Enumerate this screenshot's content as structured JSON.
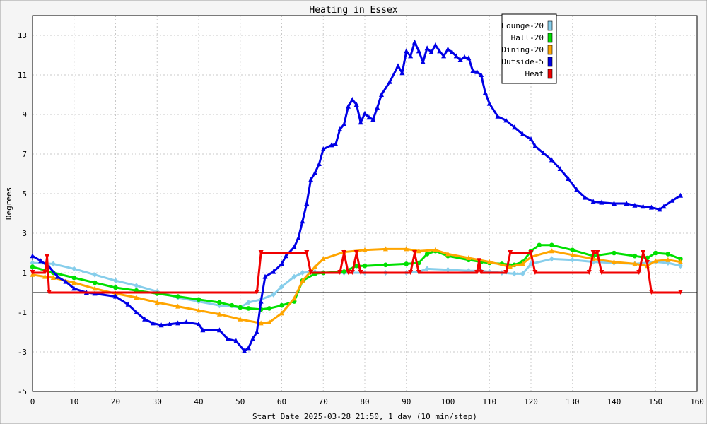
{
  "chart_data": {
    "type": "line",
    "title": "Heating in Essex",
    "xlabel": "Start Date 2025-03-28 21:50, 1 day (10 min/step)",
    "ylabel": "Degrees",
    "xlim": [
      0,
      160
    ],
    "ylim": [
      -5,
      14
    ],
    "xticks": [
      0,
      10,
      20,
      30,
      40,
      50,
      60,
      70,
      80,
      90,
      100,
      110,
      120,
      130,
      140,
      150,
      160
    ],
    "yticks": [
      -5,
      -3,
      -1,
      1,
      3,
      5,
      7,
      9,
      11,
      13
    ],
    "grid": true,
    "legend_position": "top-right",
    "baseline": 0,
    "series": [
      {
        "name": "Lounge-20",
        "color": "#87ceeb",
        "marker": "diamond",
        "points": [
          [
            0,
            1.5
          ],
          [
            5,
            1.45
          ],
          [
            10,
            1.2
          ],
          [
            15,
            0.9
          ],
          [
            20,
            0.6
          ],
          [
            25,
            0.35
          ],
          [
            30,
            0.05
          ],
          [
            35,
            -0.25
          ],
          [
            40,
            -0.45
          ],
          [
            45,
            -0.65
          ],
          [
            50,
            -0.75
          ],
          [
            52,
            -0.5
          ],
          [
            55,
            -0.35
          ],
          [
            58,
            -0.1
          ],
          [
            60,
            0.3
          ],
          [
            63,
            0.8
          ],
          [
            65,
            1.0
          ],
          [
            68,
            1.05
          ],
          [
            70,
            1.0
          ],
          [
            75,
            1.0
          ],
          [
            80,
            1.0
          ],
          [
            85,
            1.0
          ],
          [
            90,
            1.0
          ],
          [
            93,
            1.05
          ],
          [
            95,
            1.2
          ],
          [
            100,
            1.15
          ],
          [
            105,
            1.1
          ],
          [
            108,
            1.1
          ],
          [
            110,
            1.05
          ],
          [
            113,
            1.0
          ],
          [
            116,
            0.95
          ],
          [
            118,
            0.95
          ],
          [
            120,
            1.45
          ],
          [
            125,
            1.7
          ],
          [
            130,
            1.65
          ],
          [
            135,
            1.55
          ],
          [
            140,
            1.5
          ],
          [
            145,
            1.45
          ],
          [
            150,
            1.55
          ],
          [
            153,
            1.5
          ],
          [
            156,
            1.35
          ]
        ]
      },
      {
        "name": "Hall-20",
        "color": "#00e000",
        "marker": "circle",
        "points": [
          [
            0,
            1.3
          ],
          [
            5,
            1.0
          ],
          [
            10,
            0.75
          ],
          [
            15,
            0.5
          ],
          [
            20,
            0.25
          ],
          [
            25,
            0.1
          ],
          [
            30,
            -0.05
          ],
          [
            35,
            -0.2
          ],
          [
            40,
            -0.35
          ],
          [
            45,
            -0.5
          ],
          [
            48,
            -0.65
          ],
          [
            50,
            -0.75
          ],
          [
            52,
            -0.8
          ],
          [
            55,
            -0.85
          ],
          [
            57,
            -0.8
          ],
          [
            60,
            -0.65
          ],
          [
            63,
            -0.45
          ],
          [
            65,
            0.6
          ],
          [
            68,
            0.95
          ],
          [
            70,
            1.0
          ],
          [
            75,
            1.05
          ],
          [
            78,
            1.35
          ],
          [
            80,
            1.35
          ],
          [
            85,
            1.4
          ],
          [
            90,
            1.45
          ],
          [
            93,
            1.5
          ],
          [
            95,
            1.95
          ],
          [
            97,
            2.1
          ],
          [
            100,
            1.85
          ],
          [
            105,
            1.65
          ],
          [
            108,
            1.55
          ],
          [
            110,
            1.5
          ],
          [
            113,
            1.45
          ],
          [
            116,
            1.4
          ],
          [
            118,
            1.55
          ],
          [
            120,
            2.1
          ],
          [
            122,
            2.4
          ],
          [
            125,
            2.4
          ],
          [
            130,
            2.15
          ],
          [
            135,
            1.85
          ],
          [
            140,
            2.0
          ],
          [
            145,
            1.85
          ],
          [
            148,
            1.75
          ],
          [
            150,
            2.0
          ],
          [
            153,
            1.95
          ],
          [
            156,
            1.7
          ]
        ]
      },
      {
        "name": "Dining-20",
        "color": "#ffa500",
        "marker": "triangle",
        "points": [
          [
            0,
            0.9
          ],
          [
            3,
            0.8
          ],
          [
            5,
            0.75
          ],
          [
            10,
            0.5
          ],
          [
            15,
            0.2
          ],
          [
            20,
            -0.05
          ],
          [
            25,
            -0.25
          ],
          [
            30,
            -0.5
          ],
          [
            35,
            -0.7
          ],
          [
            40,
            -0.9
          ],
          [
            45,
            -1.1
          ],
          [
            50,
            -1.35
          ],
          [
            55,
            -1.55
          ],
          [
            57,
            -1.5
          ],
          [
            60,
            -1.05
          ],
          [
            63,
            -0.3
          ],
          [
            65,
            0.6
          ],
          [
            68,
            1.3
          ],
          [
            70,
            1.7
          ],
          [
            75,
            2.05
          ],
          [
            80,
            2.15
          ],
          [
            85,
            2.2
          ],
          [
            90,
            2.2
          ],
          [
            93,
            2.1
          ],
          [
            97,
            2.15
          ],
          [
            100,
            1.95
          ],
          [
            105,
            1.75
          ],
          [
            110,
            1.55
          ],
          [
            115,
            1.3
          ],
          [
            118,
            1.45
          ],
          [
            120,
            1.8
          ],
          [
            125,
            2.1
          ],
          [
            130,
            1.9
          ],
          [
            135,
            1.7
          ],
          [
            140,
            1.55
          ],
          [
            145,
            1.45
          ],
          [
            148,
            1.35
          ],
          [
            150,
            1.6
          ],
          [
            153,
            1.65
          ],
          [
            156,
            1.55
          ]
        ]
      },
      {
        "name": "Outside-5",
        "color": "#0000e6",
        "marker": "triangle",
        "points": [
          [
            0,
            1.85
          ],
          [
            2,
            1.6
          ],
          [
            4,
            1.3
          ],
          [
            6,
            0.8
          ],
          [
            8,
            0.55
          ],
          [
            10,
            0.2
          ],
          [
            13,
            0.0
          ],
          [
            15,
            -0.05
          ],
          [
            20,
            -0.2
          ],
          [
            23,
            -0.6
          ],
          [
            25,
            -1.0
          ],
          [
            27,
            -1.35
          ],
          [
            29,
            -1.55
          ],
          [
            31,
            -1.65
          ],
          [
            33,
            -1.6
          ],
          [
            35,
            -1.55
          ],
          [
            37,
            -1.5
          ],
          [
            40,
            -1.6
          ],
          [
            41,
            -1.9
          ],
          [
            45,
            -1.9
          ],
          [
            47,
            -2.35
          ],
          [
            49,
            -2.45
          ],
          [
            51,
            -2.95
          ],
          [
            52,
            -2.8
          ],
          [
            53,
            -2.35
          ],
          [
            54,
            -2.0
          ],
          [
            55,
            -0.45
          ],
          [
            56,
            0.8
          ],
          [
            58,
            1.05
          ],
          [
            60,
            1.45
          ],
          [
            61,
            1.85
          ],
          [
            63,
            2.3
          ],
          [
            64,
            2.75
          ],
          [
            65,
            3.6
          ],
          [
            66,
            4.5
          ],
          [
            67,
            5.7
          ],
          [
            68,
            6.05
          ],
          [
            69,
            6.5
          ],
          [
            70,
            7.25
          ],
          [
            72,
            7.45
          ],
          [
            73,
            7.5
          ],
          [
            74,
            8.25
          ],
          [
            75,
            8.5
          ],
          [
            76,
            9.4
          ],
          [
            77,
            9.75
          ],
          [
            78,
            9.5
          ],
          [
            79,
            8.6
          ],
          [
            80,
            9.05
          ],
          [
            81,
            8.85
          ],
          [
            82,
            8.75
          ],
          [
            83,
            9.35
          ],
          [
            84,
            10.0
          ],
          [
            86,
            10.65
          ],
          [
            88,
            11.45
          ],
          [
            89,
            11.1
          ],
          [
            90,
            12.2
          ],
          [
            91,
            11.95
          ],
          [
            92,
            12.65
          ],
          [
            93,
            12.2
          ],
          [
            94,
            11.65
          ],
          [
            95,
            12.35
          ],
          [
            96,
            12.15
          ],
          [
            97,
            12.5
          ],
          [
            98,
            12.2
          ],
          [
            99,
            11.95
          ],
          [
            100,
            12.3
          ],
          [
            101,
            12.15
          ],
          [
            102,
            11.95
          ],
          [
            103,
            11.75
          ],
          [
            104,
            11.9
          ],
          [
            105,
            11.85
          ],
          [
            106,
            11.2
          ],
          [
            107,
            11.15
          ],
          [
            108,
            11.0
          ],
          [
            109,
            10.1
          ],
          [
            110,
            9.55
          ],
          [
            112,
            8.9
          ],
          [
            114,
            8.7
          ],
          [
            116,
            8.35
          ],
          [
            118,
            8.0
          ],
          [
            120,
            7.75
          ],
          [
            121,
            7.4
          ],
          [
            123,
            7.05
          ],
          [
            125,
            6.7
          ],
          [
            127,
            6.25
          ],
          [
            129,
            5.75
          ],
          [
            131,
            5.2
          ],
          [
            133,
            4.8
          ],
          [
            135,
            4.6
          ],
          [
            137,
            4.55
          ],
          [
            140,
            4.5
          ],
          [
            143,
            4.5
          ],
          [
            145,
            4.4
          ],
          [
            147,
            4.35
          ],
          [
            149,
            4.3
          ],
          [
            151,
            4.2
          ],
          [
            152,
            4.35
          ],
          [
            154,
            4.65
          ],
          [
            156,
            4.9
          ]
        ]
      },
      {
        "name": "Heat",
        "color": "#f00000",
        "marker": "triangle-down",
        "points": [
          [
            0,
            1
          ],
          [
            3,
            1
          ],
          [
            3.5,
            1.8
          ],
          [
            4,
            0
          ],
          [
            54,
            0
          ],
          [
            55,
            2
          ],
          [
            66,
            2
          ],
          [
            67,
            1
          ],
          [
            74,
            1
          ],
          [
            75,
            2
          ],
          [
            76,
            1
          ],
          [
            77,
            1
          ],
          [
            78,
            2
          ],
          [
            79,
            1
          ],
          [
            91,
            1
          ],
          [
            92,
            2
          ],
          [
            93,
            1
          ],
          [
            107,
            1
          ],
          [
            107.5,
            1.6
          ],
          [
            108,
            1
          ],
          [
            114,
            1
          ],
          [
            115,
            2
          ],
          [
            120,
            2
          ],
          [
            121,
            1
          ],
          [
            134,
            1
          ],
          [
            135,
            2
          ],
          [
            136,
            2
          ],
          [
            137,
            1
          ],
          [
            146,
            1
          ],
          [
            147,
            2
          ],
          [
            148,
            1.5
          ],
          [
            149,
            0
          ],
          [
            156,
            0
          ]
        ]
      }
    ]
  }
}
